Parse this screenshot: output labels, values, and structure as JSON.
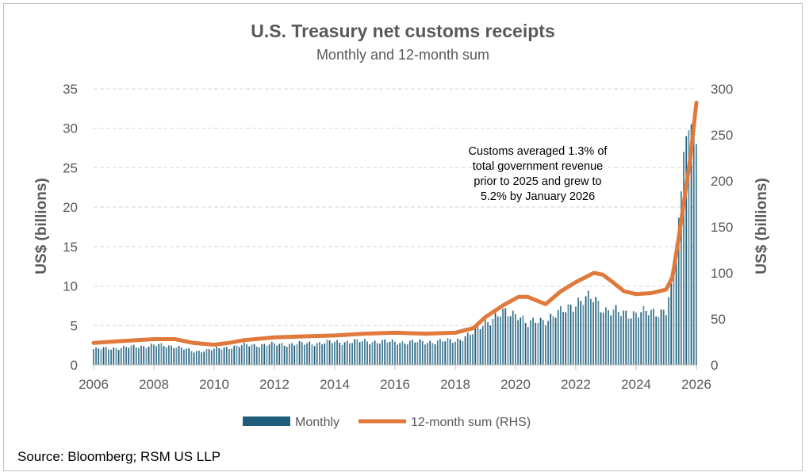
{
  "chart_data": {
    "type": "bar+line",
    "title": "U.S. Treasury net customs receipts",
    "subtitle": "Monthly and 12-month sum",
    "ylabel_left": "US$ (billions)",
    "ylabel_right": "US$ (billions)",
    "ylim_left": [
      0,
      35
    ],
    "ylim_right": [
      0,
      300
    ],
    "yticks_left": [
      "0",
      "5",
      "10",
      "15",
      "20",
      "25",
      "30",
      "35"
    ],
    "yticks_right": [
      "0",
      "50",
      "100",
      "150",
      "200",
      "250",
      "300"
    ],
    "xlim": [
      2006,
      2026
    ],
    "xticks": [
      "2006",
      "2008",
      "2010",
      "2012",
      "2014",
      "2016",
      "2018",
      "2020",
      "2022",
      "2024",
      "2026"
    ],
    "grid": true,
    "legend_position": "bottom",
    "series": [
      {
        "name": "Monthly",
        "type": "bar",
        "axis": "left",
        "color": "#1f5d7a",
        "points": [
          [
            2006,
            2.0
          ],
          [
            2007,
            2.2
          ],
          [
            2008,
            2.5
          ],
          [
            2008.7,
            2.4
          ],
          [
            2009.3,
            1.7
          ],
          [
            2010,
            2.0
          ],
          [
            2011,
            2.5
          ],
          [
            2012,
            2.6
          ],
          [
            2013,
            2.7
          ],
          [
            2014,
            2.9
          ],
          [
            2015,
            3.0
          ],
          [
            2016,
            2.9
          ],
          [
            2017,
            2.9
          ],
          [
            2018,
            3.1
          ],
          [
            2018.6,
            4.0
          ],
          [
            2019,
            5.5
          ],
          [
            2019.6,
            6.5
          ],
          [
            2020.1,
            6.6
          ],
          [
            2020.4,
            5.0
          ],
          [
            2020.7,
            5.6
          ],
          [
            2021,
            5.8
          ],
          [
            2021.5,
            6.6
          ],
          [
            2022,
            8.0
          ],
          [
            2022.6,
            8.4
          ],
          [
            2023,
            7.0
          ],
          [
            2023.5,
            6.5
          ],
          [
            2024,
            6.6
          ],
          [
            2024.5,
            6.6
          ],
          [
            2025.0,
            7.0
          ],
          [
            2025.2,
            11.0
          ],
          [
            2025.35,
            16.0
          ],
          [
            2025.5,
            22.0
          ],
          [
            2025.6,
            28.0
          ],
          [
            2025.7,
            29.5
          ],
          [
            2025.8,
            30.0
          ],
          [
            2025.9,
            31.5
          ],
          [
            2026.0,
            28.0
          ]
        ]
      },
      {
        "name": "12-month sum (RHS)",
        "type": "line",
        "axis": "right",
        "color": "#e07a3c",
        "points": [
          [
            2006,
            24
          ],
          [
            2007,
            26
          ],
          [
            2008,
            28
          ],
          [
            2008.7,
            28
          ],
          [
            2009.3,
            24
          ],
          [
            2010,
            22
          ],
          [
            2010.5,
            24
          ],
          [
            2011,
            27
          ],
          [
            2012,
            30
          ],
          [
            2013,
            31
          ],
          [
            2014,
            32
          ],
          [
            2015,
            34
          ],
          [
            2016,
            35
          ],
          [
            2017,
            34
          ],
          [
            2018,
            35
          ],
          [
            2018.6,
            40
          ],
          [
            2019,
            52
          ],
          [
            2019.6,
            65
          ],
          [
            2020.1,
            74
          ],
          [
            2020.4,
            74
          ],
          [
            2020.7,
            70
          ],
          [
            2021.0,
            66
          ],
          [
            2021.5,
            80
          ],
          [
            2022,
            90
          ],
          [
            2022.6,
            100
          ],
          [
            2022.9,
            98
          ],
          [
            2023.3,
            88
          ],
          [
            2023.6,
            80
          ],
          [
            2024,
            77
          ],
          [
            2024.5,
            78
          ],
          [
            2025.0,
            82
          ],
          [
            2025.2,
            95
          ],
          [
            2025.4,
            135
          ],
          [
            2025.6,
            180
          ],
          [
            2025.8,
            225
          ],
          [
            2026.0,
            285
          ]
        ]
      }
    ],
    "annotation": [
      "Customs averaged 1.3% of",
      "total government revenue",
      "prior to 2025 and grew to",
      "5.2% by January 2026"
    ],
    "source": "Source: Bloomberg; RSM US LLP"
  }
}
